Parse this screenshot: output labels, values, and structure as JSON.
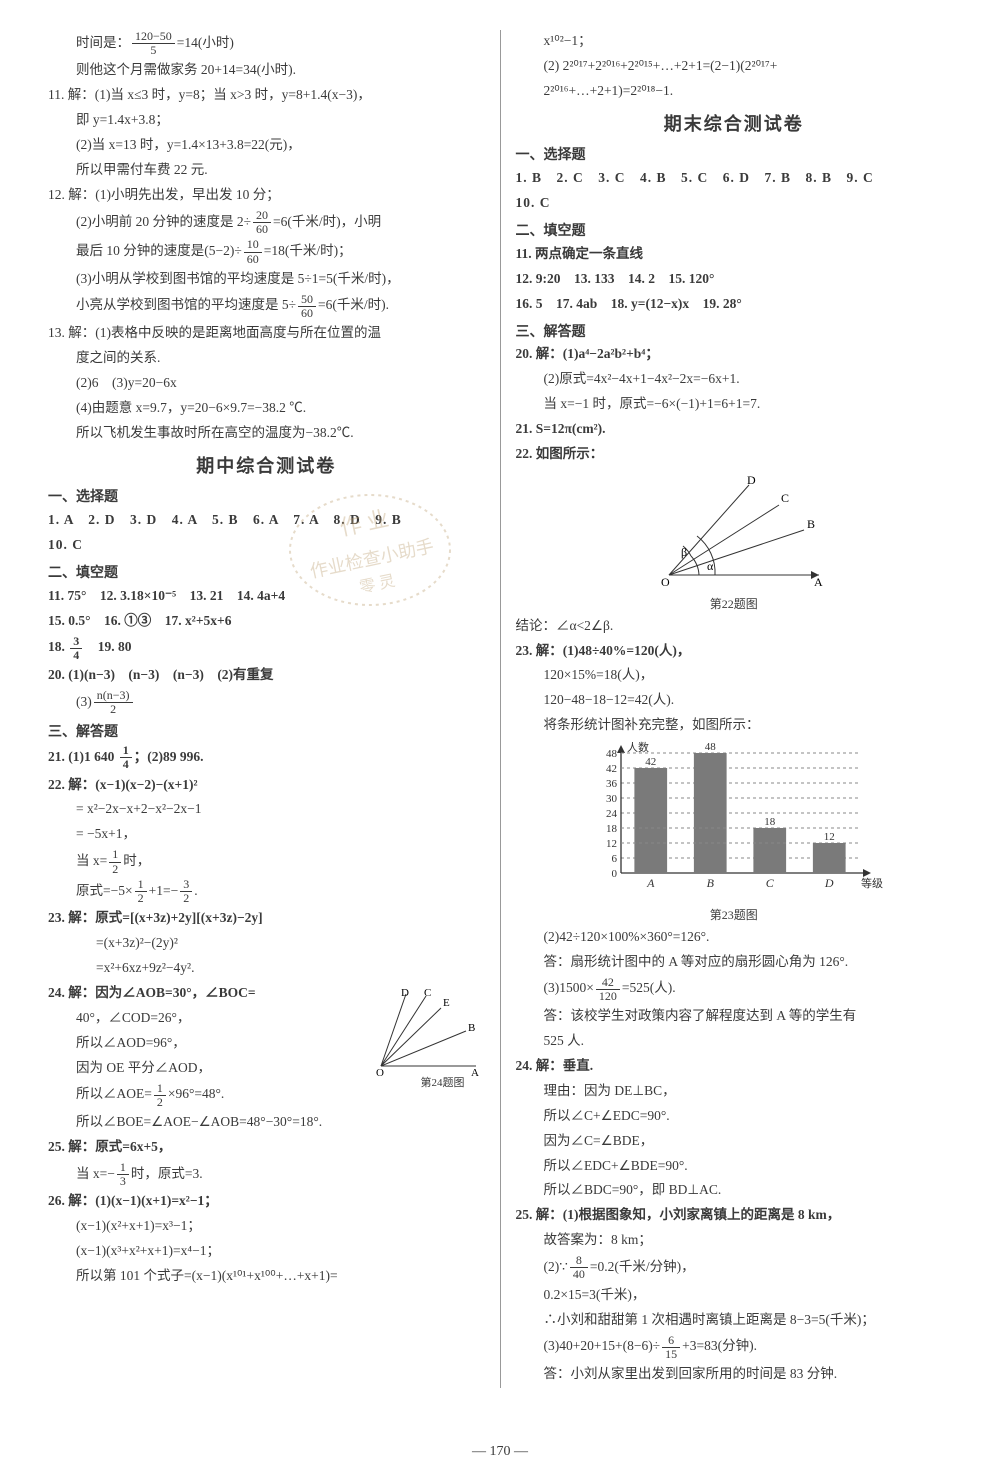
{
  "page_number": "— 170 —",
  "left": {
    "lines": [
      {
        "cls": "indent",
        "html": "时间是：<span class='frac'><span class='num'>120−50</span><span class='den'>5</span></span>=14(小时)"
      },
      {
        "cls": "indent",
        "text": "则他这个月需做家务 20+14=34(小时)."
      },
      {
        "cls": "",
        "text": "11. 解：(1)当 x≤3 时，y=8；当 x>3 时，y=8+1.4(x−3)，"
      },
      {
        "cls": "indent",
        "text": "即 y=1.4x+3.8；"
      },
      {
        "cls": "indent",
        "text": "(2)当 x=13 时，y=1.4×13+3.8=22(元)，"
      },
      {
        "cls": "indent",
        "text": "所以甲需付车费 22 元."
      },
      {
        "cls": "",
        "text": "12. 解：(1)小明先出发，早出发 10 分；"
      },
      {
        "cls": "indent",
        "html": "(2)小明前 20 分钟的速度是 2÷<span class='frac'><span class='num'>20</span><span class='den'>60</span></span>=6(千米/时)，小明"
      },
      {
        "cls": "indent",
        "html": "最后 10 分钟的速度是(5−2)÷<span class='frac'><span class='num'>10</span><span class='den'>60</span></span>=18(千米/时)；"
      },
      {
        "cls": "indent",
        "text": "(3)小明从学校到图书馆的平均速度是 5÷1=5(千米/时)，"
      },
      {
        "cls": "indent",
        "html": "小亮从学校到图书馆的平均速度是 5÷<span class='frac'><span class='num'>50</span><span class='den'>60</span></span>=6(千米/时)."
      },
      {
        "cls": "",
        "text": "13. 解：(1)表格中反映的是距离地面高度与所在位置的温"
      },
      {
        "cls": "indent",
        "text": "度之间的关系."
      },
      {
        "cls": "indent",
        "text": "(2)6　(3)y=20−6x"
      },
      {
        "cls": "indent",
        "text": "(4)由题意 x=9.7，y=20−6×9.7=−38.2 ℃."
      },
      {
        "cls": "indent",
        "text": "所以飞机发生事故时所在高空的温度为−38.2℃."
      }
    ],
    "midterm_title": "期中综合测试卷",
    "mc_label": "一、选择题",
    "mc_answers": "1. A　2. D　3. D　4. A　5. B　6. A　7. A　8. D　9. B",
    "mc_answers2": "10. C",
    "fill_label": "二、填空题",
    "fill": [
      "11. 75°　12. 3.18×10⁻⁵　13. 21　14. 4a+4",
      "15. 0.5°　16. ①③　17. x²+5x+6"
    ],
    "fill_frac": "18. <span class='frac'><span class='num'>3</span><span class='den'>4</span></span>　19. 80",
    "q20": [
      "20. (1)(n−3)　(n−3)　(n−3)　(2)有重复"
    ],
    "q20_frac": "(3)<span class='frac'><span class='num'>n(n−3)</span><span class='den'>2</span></span>",
    "solve_label": "三、解答题",
    "q21": "21. (1)1 640 <span class='frac'><span class='num'>1</span><span class='den'>4</span></span>；(2)89 996.",
    "q22": [
      "22. 解：(x−1)(x−2)−(x+1)²",
      "= x²−2x−x+2−x²−2x−1",
      "= −5x+1，"
    ],
    "q22_2": "当 x=<span class='frac'><span class='num'>1</span><span class='den'>2</span></span>时，",
    "q22_3": "原式=−5×<span class='frac'><span class='num'>1</span><span class='den'>2</span></span>+1=−<span class='frac'><span class='num'>3</span><span class='den'>2</span></span>.",
    "q23": [
      "23. 解：原式=[(x+3z)+2y][(x+3z)−2y]",
      "=(x+3z)²−(2y)²",
      "=x²+6xz+9z²−4y²."
    ],
    "q24": [
      "24. 解：因为∠AOB=30°，∠BOC=",
      "40°，∠COD=26°，",
      "所以∠AOD=96°，",
      "因为 OE 平分∠AOD，"
    ],
    "q24_2": "所以∠AOE=<span class='frac'><span class='num'>1</span><span class='den'>2</span></span>×96°=48°.",
    "q24_3": "所以∠BOE=∠AOE−∠AOB=48°−30°=18°.",
    "q24_fig": {
      "caption": "第24题图",
      "labels": [
        "O",
        "A",
        "B",
        "C",
        "D",
        "E"
      ]
    },
    "q25": [
      "25. 解：原式=6x+5，"
    ],
    "q25_2": "当 x=−<span class='frac'><span class='num'>1</span><span class='den'>3</span></span>时，原式=3.",
    "q26": [
      "26. 解：(1)(x−1)(x+1)=x²−1；",
      "(x−1)(x²+x+1)=x³−1；",
      "(x−1)(x³+x²+x+1)=x⁴−1；",
      "所以第 101 个式子=(x−1)(x¹⁰¹+x¹⁰⁰+…+x+1)="
    ]
  },
  "right": {
    "top": [
      "x¹⁰²−1；",
      "(2) 2²⁰¹⁷+2²⁰¹⁶+2²⁰¹⁵+…+2+1=(2−1)(2²⁰¹⁷+",
      "2²⁰¹⁶+…+2+1)=2²⁰¹⁸−1."
    ],
    "final_title": "期末综合测试卷",
    "mc_label": "一、选择题",
    "mc": "1. B　2. C　3. C　4. B　5. C　6. D　7. B　8. B　9. C",
    "mc2": "10. C",
    "fill_label": "二、填空题",
    "fill": [
      "11. 两点确定一条直线",
      "12. 9:20　13. 133　14. 2　15. 120°",
      "16. 5　17. 4ab　18. y=(12−x)x　19. 28°"
    ],
    "solve_label": "三、解答题",
    "q20": [
      "20. 解：(1)a⁴−2a²b²+b⁴；",
      "(2)原式=4x²−4x+1−4x²−2x=−6x+1.",
      "当 x=−1 时，原式=−6×(−1)+1=6+1=7."
    ],
    "q21": "21. S=12π(cm²).",
    "q22": "22. 如图所示：",
    "q22_fig": {
      "caption": "第22题图",
      "labels": [
        "O",
        "A",
        "B",
        "C",
        "D",
        "α",
        "β"
      ]
    },
    "q22_concl": "结论：∠α<2∠β.",
    "q23": [
      "23. 解：(1)48÷40%=120(人)，",
      "120×15%=18(人)，",
      "120−48−18−12=42(人).",
      "将条形统计图补充完整，如图所示："
    ],
    "barchart": {
      "caption": "第23题图",
      "ylabel": "人数",
      "xlabel": "等级",
      "ymax": 48,
      "yticks": [
        0,
        6,
        12,
        18,
        24,
        30,
        36,
        42,
        48
      ],
      "categories": [
        "A",
        "B",
        "C",
        "D"
      ],
      "values": [
        42,
        48,
        18,
        12
      ],
      "bar_color": "#7a7a7a",
      "dashed_color": "#888888",
      "axis_color": "#333333",
      "bg": "#ffffff"
    },
    "q23_2": [
      "(2)42÷120×100%×360°=126°.",
      "答：扇形统计图中的 A 等对应的扇形圆心角为 126°."
    ],
    "q23_3": "(3)1500×<span class='frac'><span class='num'>42</span><span class='den'>120</span></span>=525(人).",
    "q23_4": [
      "答：该校学生对政策内容了解程度达到 A 等的学生有",
      "525 人."
    ],
    "q24": [
      "24. 解：垂直.",
      "理由：因为 DE⊥BC，",
      "所以∠C+∠EDC=90°.",
      "因为∠C=∠BDE，",
      "所以∠EDC+∠BDE=90°.",
      "所以∠BDC=90°，即 BD⊥AC."
    ],
    "q25": [
      "25. 解：(1)根据图象知，小刘家离镇上的距离是 8 km，",
      "故答案为：8 km；"
    ],
    "q25_2": "(2)∵<span class='frac'><span class='num'>8</span><span class='den'>40</span></span>=0.2(千米/分钟)，",
    "q25_3": [
      "0.2×15=3(千米)，",
      "∴小刘和甜甜第 1 次相遇时离镇上距离是 8−3=5(千米)；"
    ],
    "q25_4": "(3)40+20+15+(8−6)÷<span class='frac'><span class='num'>6</span><span class='den'>15</span></span>+3=83(分钟).",
    "q25_5": "答：小刘从家里出发到回家所用的时间是 83 分钟."
  }
}
